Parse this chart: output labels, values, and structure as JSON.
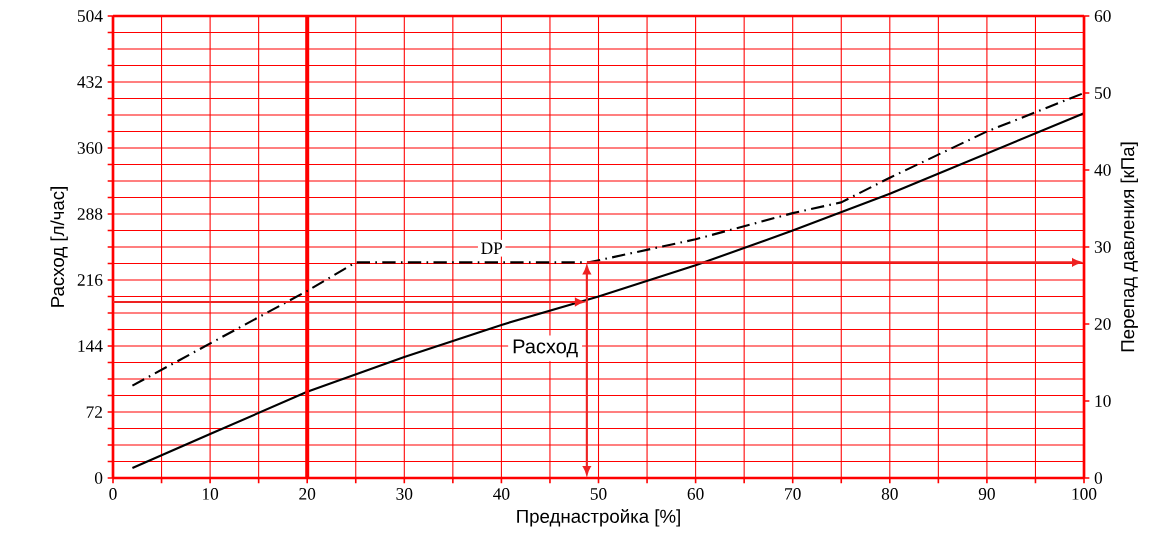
{
  "chart_data": {
    "type": "line",
    "xlabel": "Преднастройка [%]",
    "ylabel": "Расход [л/час]",
    "y2label": "Перепад давления [кПа]",
    "xlim": [
      0,
      100
    ],
    "xticks": [
      0,
      {
        "value": 5,
        "label": null
      },
      10,
      {
        "value": 15,
        "label": null
      },
      20,
      {
        "value": 25,
        "label": null
      },
      30,
      {
        "value": 35,
        "label": null
      },
      40,
      {
        "value": 45,
        "label": null
      },
      50,
      {
        "value": 55,
        "label": null
      },
      60,
      {
        "value": 65,
        "label": null
      },
      70,
      {
        "value": 75,
        "label": null
      },
      80,
      {
        "value": 85,
        "label": null
      },
      90,
      {
        "value": 95,
        "label": null
      },
      100
    ],
    "ylim": [
      0,
      504
    ],
    "yticks": [
      0,
      {
        "value": 18,
        "label": null
      },
      {
        "value": 36,
        "label": null
      },
      {
        "value": 54,
        "label": null
      },
      72,
      {
        "value": 90,
        "label": null
      },
      {
        "value": 108,
        "label": null
      },
      {
        "value": 126,
        "label": null
      },
      144,
      {
        "value": 162,
        "label": null
      },
      {
        "value": 180,
        "label": null
      },
      {
        "value": 198,
        "label": null
      },
      216,
      {
        "value": 234,
        "label": null
      },
      {
        "value": 252,
        "label": null
      },
      {
        "value": 270,
        "label": null
      },
      288,
      {
        "value": 306,
        "label": null
      },
      {
        "value": 324,
        "label": null
      },
      {
        "value": 342,
        "label": null
      },
      360,
      {
        "value": 378,
        "label": null
      },
      {
        "value": 396,
        "label": null
      },
      {
        "value": 414,
        "label": null
      },
      432,
      {
        "value": 450,
        "label": null
      },
      {
        "value": 468,
        "label": null
      },
      {
        "value": 486,
        "label": null
      },
      504
    ],
    "y2lim": [
      0,
      60
    ],
    "y2ticks": [
      0,
      10,
      20,
      30,
      40,
      50,
      60
    ],
    "grid": true,
    "legend": false,
    "marker": "none",
    "series": [
      {
        "name": "Расход",
        "color": "#000000",
        "line_style": "solid",
        "x": [
          2,
          10,
          20,
          30,
          40,
          50,
          60,
          70,
          80,
          90,
          100
        ],
        "values": [
          11,
          48,
          94,
          132,
          167,
          198,
          232,
          270,
          310,
          354,
          398
        ]
      },
      {
        "name": "DP",
        "color": "#000000",
        "line_style": "dashdot",
        "axis": "y2",
        "x": [
          2,
          20,
          25,
          49,
          60,
          70,
          75,
          80,
          90,
          100
        ],
        "values": [
          12,
          24.3,
          28,
          28,
          31,
          34.4,
          35.8,
          39,
          45,
          50
        ]
      }
    ],
    "ref_lines": [
      {
        "axis": "x",
        "value": 20,
        "color": "#ff0000"
      },
      {
        "axis": "x",
        "value": 48.8,
        "color": "#ee2222"
      },
      {
        "axis": "y",
        "value": 192,
        "color": "#ee2222"
      },
      {
        "axis": "y2",
        "value": 28,
        "color": "#ee2222"
      }
    ]
  }
}
